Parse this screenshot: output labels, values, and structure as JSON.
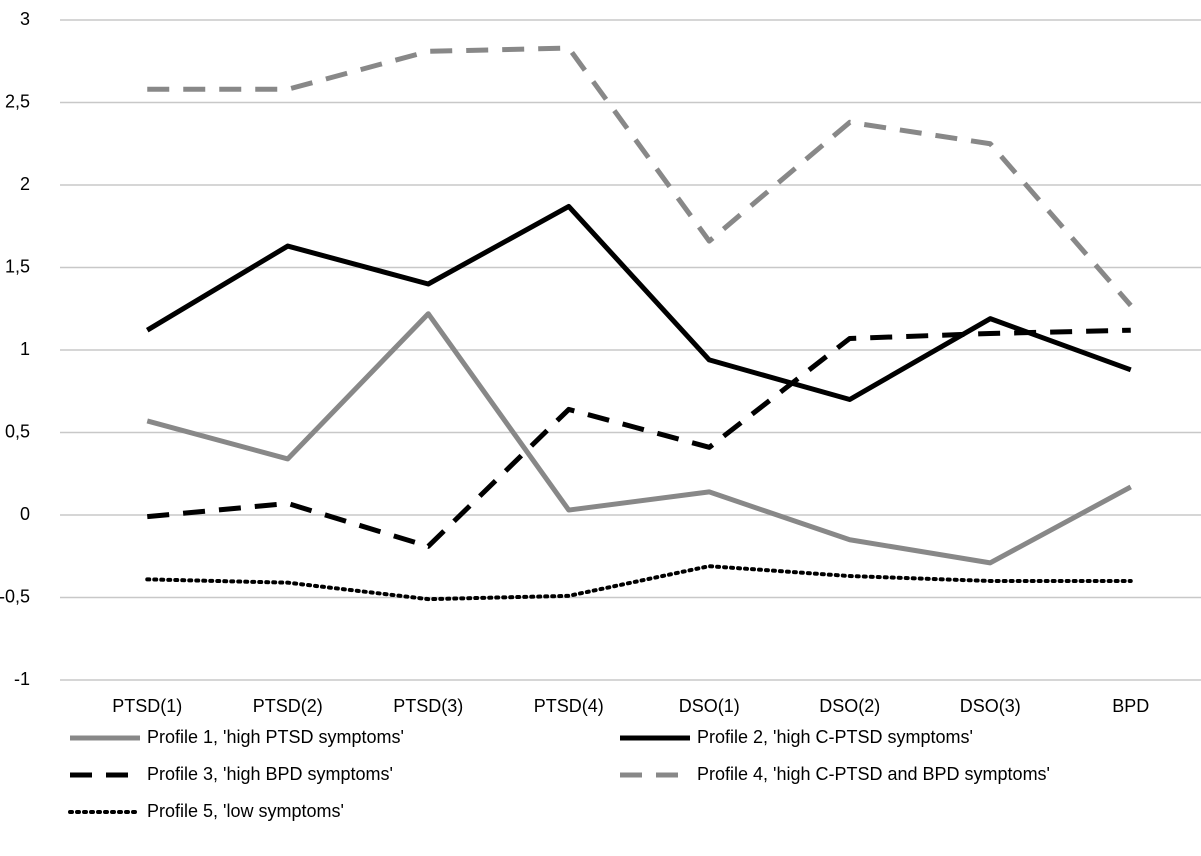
{
  "chart_data": {
    "type": "line",
    "categories": [
      "PTSD(1)",
      "PTSD(2)",
      "PTSD(3)",
      "PTSD(4)",
      "DSO(1)",
      "DSO(2)",
      "DSO(3)",
      "BPD"
    ],
    "series": [
      {
        "name": "Profile 1, 'high PTSD symptoms'",
        "color": "#888888",
        "style": "solid",
        "values": [
          0.57,
          0.34,
          1.22,
          0.03,
          0.14,
          -0.15,
          -0.29,
          0.17
        ]
      },
      {
        "name": "Profile 2, 'high C-PTSD symptoms'",
        "color": "#000000",
        "style": "solid",
        "values": [
          1.12,
          1.63,
          1.4,
          1.87,
          0.94,
          0.7,
          1.19,
          0.88
        ]
      },
      {
        "name": "Profile 3, 'high BPD symptoms'",
        "color": "#000000",
        "style": "dashed",
        "values": [
          -0.01,
          0.07,
          -0.19,
          0.64,
          0.41,
          1.07,
          1.1,
          1.12
        ]
      },
      {
        "name": "Profile 4, 'high C-PTSD and BPD symptoms'",
        "color": "#888888",
        "style": "dashed",
        "values": [
          2.58,
          2.58,
          2.81,
          2.83,
          1.66,
          2.38,
          2.25,
          1.27
        ]
      },
      {
        "name": "Profile 5, 'low symptoms'",
        "color": "#000000",
        "style": "dotted",
        "values": [
          -0.39,
          -0.41,
          -0.51,
          -0.49,
          -0.31,
          -0.37,
          -0.4,
          -0.4
        ]
      }
    ],
    "ylim": [
      -1,
      3
    ],
    "yticks": [
      -1,
      {
        "value": -0.5,
        "label": "-0,5"
      },
      0,
      {
        "value": 0.5,
        "label": "0,5"
      },
      1,
      {
        "value": 1.5,
        "label": "1,5"
      },
      2,
      {
        "value": 2.5,
        "label": "2,5"
      },
      3
    ],
    "grid": true,
    "legend": "bottom"
  }
}
